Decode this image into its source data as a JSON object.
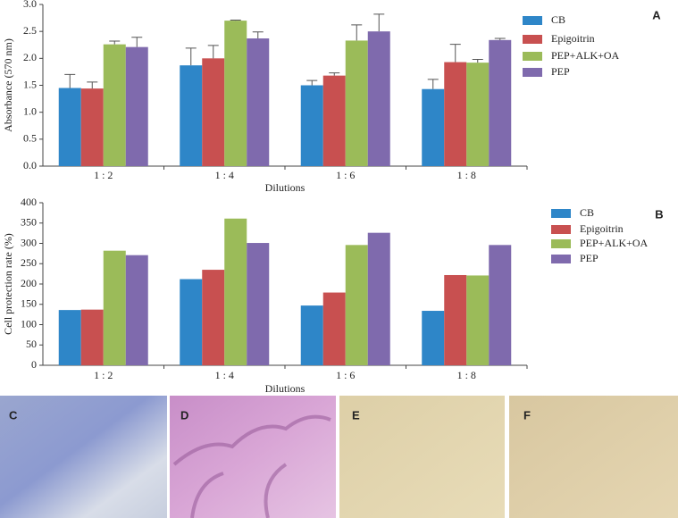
{
  "chart_data": [
    {
      "type": "bar",
      "label": "A",
      "y_label": "Absorbance (570 nm)",
      "x_label": "Dilutions",
      "categories": [
        "1 : 2",
        "1 : 4",
        "1 : 6",
        "1 : 8"
      ],
      "series": [
        {
          "name": "CB",
          "color": "#2e86c8",
          "values": [
            1.45,
            1.87,
            1.5,
            1.43
          ],
          "errors": [
            0.25,
            0.32,
            0.09,
            0.18
          ]
        },
        {
          "name": "Epigoitrin",
          "color": "#c85050",
          "values": [
            1.44,
            2.0,
            1.68,
            1.93
          ],
          "errors": [
            0.12,
            0.24,
            0.05,
            0.33
          ]
        },
        {
          "name": "PEP+ALK+OA",
          "color": "#9bbb59",
          "values": [
            2.26,
            2.7,
            2.33,
            1.92
          ],
          "errors": [
            0.06,
            0.01,
            0.29,
            0.06
          ]
        },
        {
          "name": "PEP",
          "color": "#7f6aad",
          "values": [
            2.21,
            2.37,
            2.5,
            2.34
          ],
          "errors": [
            0.18,
            0.12,
            0.32,
            0.03
          ]
        }
      ],
      "ylim": [
        0,
        3
      ],
      "yticks": [
        {
          "value": 0,
          "label": "0.0"
        },
        0.5,
        {
          "value": 1,
          "label": "1.0"
        },
        1.5,
        {
          "value": 2,
          "label": "2.0"
        },
        2.5,
        {
          "value": 3,
          "label": "3.0"
        }
      ]
    },
    {
      "type": "bar",
      "label": "B",
      "y_label": "Cell protection rate (%)",
      "x_label": "Dilutions",
      "categories": [
        "1 : 2",
        "1 : 4",
        "1 : 6",
        "1 : 8"
      ],
      "series": [
        {
          "name": "CB",
          "color": "#2e86c8",
          "values": [
            136,
            212,
            147,
            134
          ]
        },
        {
          "name": "Epigoitrin",
          "color": "#c85050",
          "values": [
            137,
            235,
            179,
            222
          ]
        },
        {
          "name": "PEP+ALK+OA",
          "color": "#9bbb59",
          "values": [
            282,
            361,
            296,
            221
          ]
        },
        {
          "name": "PEP",
          "color": "#7f6aad",
          "values": [
            271,
            301,
            326,
            296
          ]
        }
      ],
      "ylim": [
        0,
        400
      ],
      "yticks": [
        0,
        50,
        100,
        150,
        200,
        250,
        300,
        350,
        400
      ]
    }
  ],
  "panels": [
    "C",
    "D",
    "E",
    "F"
  ]
}
